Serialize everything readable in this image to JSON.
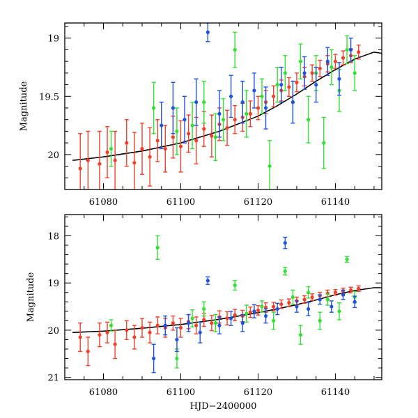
{
  "colors": {
    "red": "#f0402a",
    "green": "#33e033",
    "blue": "#1f52e0",
    "model": "#000000",
    "frame": "#000000"
  },
  "chart_data": [
    {
      "id": "top",
      "type": "scatter",
      "title": "",
      "xlabel": "",
      "ylabel": "Magnitude",
      "xlim": [
        61070,
        61152
      ],
      "ylim": [
        20.3,
        18.87
      ],
      "y_inverted": true,
      "xticks": [
        61080,
        61100,
        61120,
        61140
      ],
      "xtick_labels": [
        "61080",
        "61100",
        "61120",
        "61140"
      ],
      "yticks": [
        19,
        19.5,
        20
      ],
      "ytick_labels": [
        "19",
        "19.5",
        "20"
      ],
      "model_curve": {
        "x": [
          61072,
          61080,
          61090,
          61100,
          61110,
          61120,
          61125,
          61130,
          61135,
          61140,
          61145,
          61150,
          61152
        ],
        "y": [
          20.05,
          20.02,
          19.97,
          19.9,
          19.8,
          19.67,
          19.58,
          19.48,
          19.37,
          19.27,
          19.18,
          19.12,
          19.13
        ]
      },
      "series": [
        {
          "name": "red",
          "x": [
            61074,
            61076,
            61079,
            61081,
            61083,
            61086,
            61088,
            61090,
            61092,
            61094,
            61096,
            61098,
            61100,
            61102,
            61104,
            61106,
            61108,
            61110,
            61112,
            61114,
            61116,
            61118,
            61120,
            61122,
            61124,
            61126,
            61128,
            61130,
            61132,
            61134,
            61136,
            61138,
            61140,
            61142,
            61144,
            61146
          ],
          "y": [
            20.12,
            20.05,
            20.08,
            19.98,
            20.05,
            19.9,
            20.07,
            19.95,
            20.02,
            19.88,
            19.95,
            19.85,
            19.93,
            19.82,
            19.88,
            19.78,
            19.84,
            19.74,
            19.77,
            19.7,
            19.68,
            19.65,
            19.6,
            19.55,
            19.5,
            19.45,
            19.42,
            19.38,
            19.33,
            19.3,
            19.26,
            19.22,
            19.2,
            19.17,
            19.15,
            19.12
          ],
          "err": [
            0.3,
            0.25,
            0.28,
            0.22,
            0.25,
            0.2,
            0.26,
            0.22,
            0.25,
            0.18,
            0.2,
            0.18,
            0.22,
            0.16,
            0.2,
            0.15,
            0.18,
            0.14,
            0.15,
            0.12,
            0.12,
            0.11,
            0.1,
            0.1,
            0.09,
            0.09,
            0.08,
            0.08,
            0.08,
            0.07,
            0.07,
            0.07,
            0.06,
            0.06,
            0.06,
            0.06
          ]
        },
        {
          "name": "green",
          "x": [
            61082,
            61093,
            61099,
            61103,
            61106,
            61109,
            61111,
            61114,
            61117,
            61121,
            61123,
            61125,
            61127,
            61129,
            61131,
            61133,
            61135,
            61137,
            61139,
            61141,
            61143,
            61145
          ],
          "y": [
            19.95,
            19.6,
            19.8,
            19.75,
            19.55,
            19.85,
            19.7,
            19.1,
            19.65,
            19.5,
            20.1,
            19.4,
            19.3,
            19.55,
            19.2,
            19.7,
            19.3,
            19.9,
            19.25,
            19.45,
            19.1,
            19.3
          ],
          "err": [
            0.15,
            0.22,
            0.2,
            0.2,
            0.18,
            0.2,
            0.18,
            0.15,
            0.2,
            0.15,
            0.22,
            0.15,
            0.15,
            0.18,
            0.15,
            0.2,
            0.15,
            0.22,
            0.15,
            0.18,
            0.12,
            0.15
          ]
        },
        {
          "name": "blue",
          "x": [
            61095,
            61098,
            61101,
            61104,
            61107,
            61110,
            61113,
            61116,
            61119,
            61122,
            61126,
            61129,
            61132,
            61135,
            61138,
            61141,
            61144
          ],
          "y": [
            19.75,
            19.6,
            19.7,
            19.55,
            18.95,
            19.65,
            19.5,
            19.55,
            19.45,
            19.6,
            19.4,
            19.55,
            19.3,
            19.4,
            19.2,
            19.35,
            19.1
          ],
          "err": [
            0.2,
            0.22,
            0.2,
            0.2,
            0.08,
            0.2,
            0.18,
            0.18,
            0.15,
            0.18,
            0.15,
            0.18,
            0.14,
            0.15,
            0.12,
            0.14,
            0.1
          ]
        }
      ]
    },
    {
      "id": "bottom",
      "type": "scatter",
      "title": "",
      "xlabel": "HJD−2400000",
      "ylabel": "Magnitude",
      "xlim": [
        61070,
        61152
      ],
      "ylim": [
        21.05,
        17.55
      ],
      "y_inverted": true,
      "xticks": [
        61080,
        61100,
        61120,
        61140
      ],
      "xtick_labels": [
        "61080",
        "61100",
        "61120",
        "61140"
      ],
      "yticks": [
        18,
        19,
        20,
        21
      ],
      "ytick_labels": [
        "18",
        "19",
        "20",
        "21"
      ],
      "model_curve": {
        "x": [
          61072,
          61080,
          61090,
          61100,
          61110,
          61120,
          61125,
          61130,
          61135,
          61140,
          61145,
          61150,
          61152
        ],
        "y": [
          20.05,
          20.02,
          19.96,
          19.88,
          19.77,
          19.63,
          19.55,
          19.46,
          19.36,
          19.25,
          19.16,
          19.1,
          19.1
        ]
      },
      "series": [
        {
          "name": "red",
          "x": [
            61074,
            61076,
            61079,
            61081,
            61083,
            61086,
            61088,
            61090,
            61092,
            61094,
            61096,
            61098,
            61100,
            61102,
            61104,
            61106,
            61108,
            61110,
            61112,
            61114,
            61116,
            61118,
            61120,
            61122,
            61124,
            61126,
            61128,
            61130,
            61132,
            61134,
            61136,
            61138,
            61140,
            61142,
            61144,
            61146
          ],
          "y": [
            20.15,
            20.45,
            20.1,
            20.05,
            20.3,
            20.0,
            20.15,
            19.95,
            20.05,
            19.9,
            19.95,
            19.85,
            19.95,
            19.82,
            19.9,
            19.78,
            19.85,
            19.72,
            19.75,
            19.68,
            19.7,
            19.62,
            19.58,
            19.52,
            19.5,
            19.45,
            19.42,
            19.38,
            19.35,
            19.3,
            19.27,
            19.22,
            19.2,
            19.17,
            19.15,
            19.12
          ],
          "err": [
            0.3,
            0.3,
            0.25,
            0.22,
            0.3,
            0.2,
            0.25,
            0.2,
            0.22,
            0.18,
            0.2,
            0.15,
            0.2,
            0.15,
            0.18,
            0.14,
            0.16,
            0.13,
            0.14,
            0.12,
            0.12,
            0.11,
            0.1,
            0.1,
            0.09,
            0.09,
            0.08,
            0.08,
            0.08,
            0.07,
            0.07,
            0.07,
            0.06,
            0.06,
            0.06,
            0.06
          ]
        },
        {
          "name": "green",
          "x": [
            61082,
            61094,
            61099,
            61103,
            61106,
            61109,
            61114,
            61117,
            61121,
            61124,
            61127,
            61129,
            61131,
            61133,
            61136,
            61138,
            61141,
            61143,
            61145
          ],
          "y": [
            19.9,
            18.25,
            20.6,
            19.75,
            19.55,
            19.85,
            19.05,
            19.65,
            19.5,
            19.8,
            18.75,
            19.3,
            20.1,
            19.2,
            19.8,
            19.35,
            19.6,
            18.5,
            19.3
          ],
          "err": [
            0.12,
            0.25,
            0.2,
            0.18,
            0.15,
            0.18,
            0.1,
            0.18,
            0.12,
            0.18,
            0.08,
            0.15,
            0.2,
            0.12,
            0.18,
            0.12,
            0.18,
            0.06,
            0.12
          ]
        },
        {
          "name": "blue",
          "x": [
            61093,
            61096,
            61099,
            61102,
            61105,
            61107,
            61110,
            61113,
            61116,
            61119,
            61122,
            61125,
            61127,
            61130,
            61133,
            61136,
            61139,
            61142,
            61145
          ],
          "y": [
            20.6,
            19.9,
            20.2,
            19.85,
            20.05,
            18.95,
            19.9,
            19.75,
            19.85,
            19.6,
            19.7,
            19.55,
            18.15,
            19.5,
            19.55,
            19.35,
            19.5,
            19.25,
            19.4
          ],
          "err": [
            0.3,
            0.2,
            0.25,
            0.18,
            0.22,
            0.08,
            0.18,
            0.15,
            0.18,
            0.14,
            0.15,
            0.12,
            0.12,
            0.12,
            0.14,
            0.1,
            0.12,
            0.1,
            0.12
          ]
        }
      ]
    }
  ]
}
